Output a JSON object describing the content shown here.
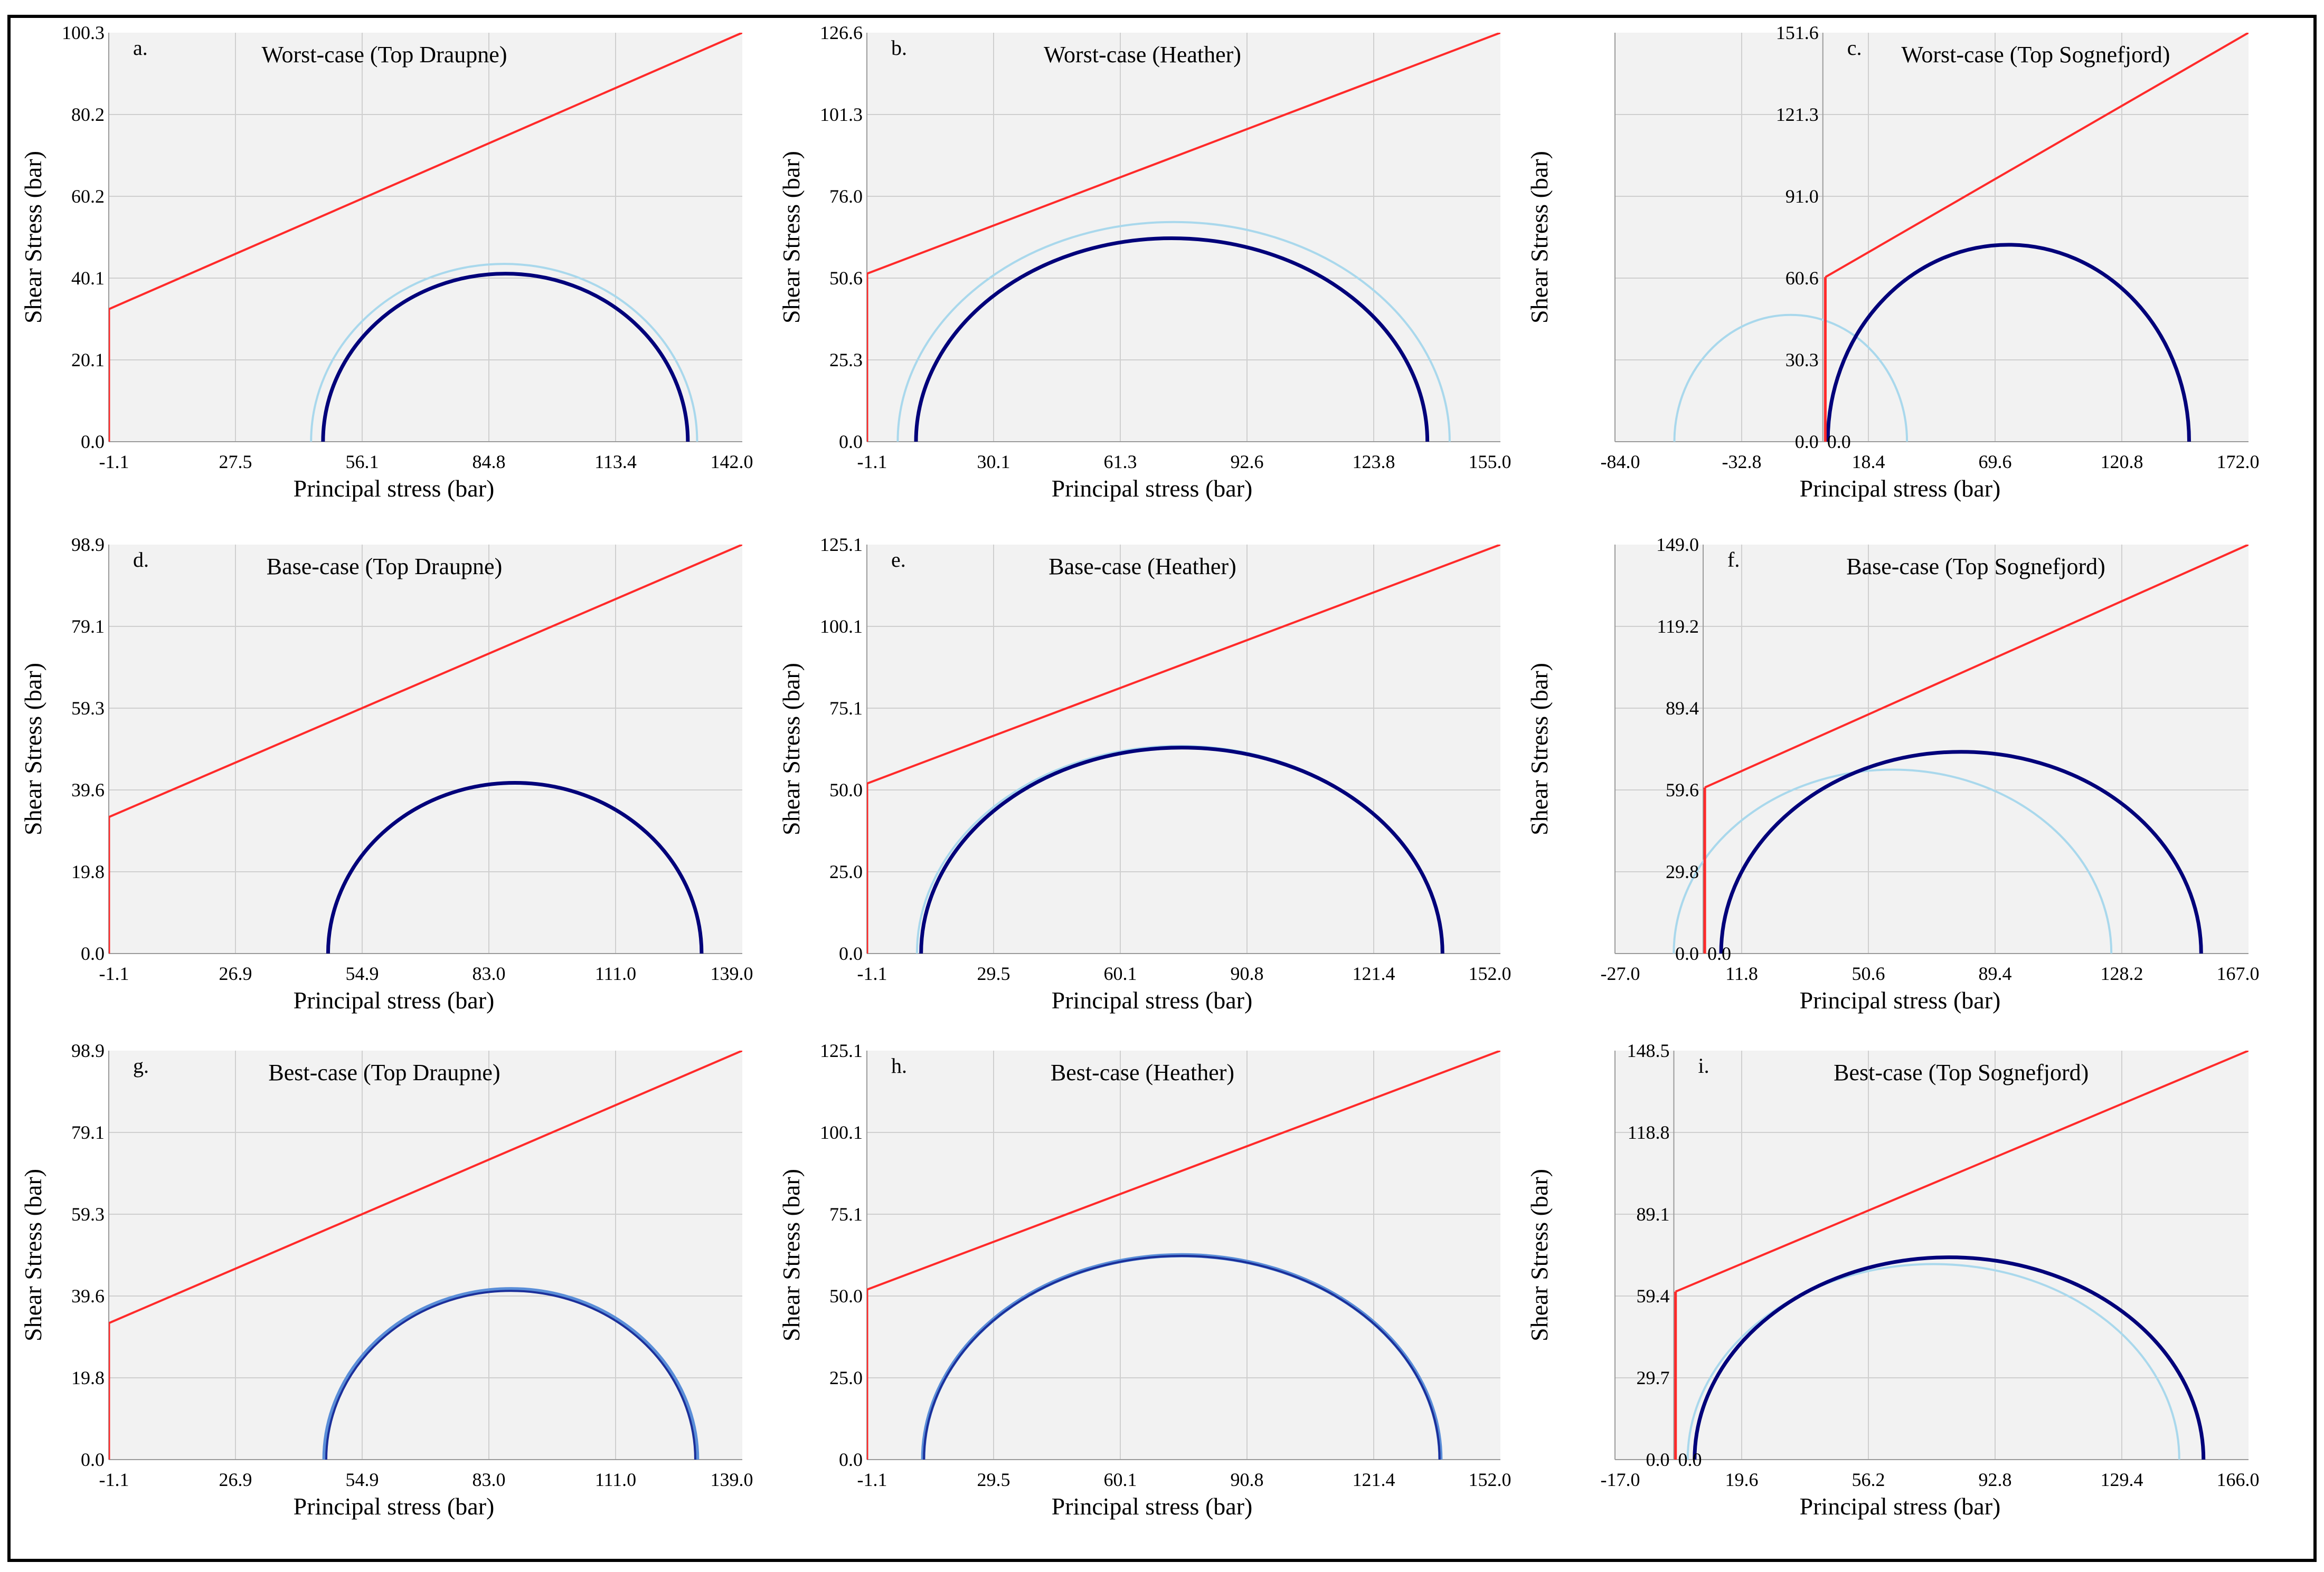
{
  "figure": {
    "x_axis_label": "Principal stress (bar)",
    "y_axis_label": "Shear Stress (bar)"
  },
  "colors": {
    "plot_bg": "#f2f2f2",
    "grid": "#cfcfcf",
    "failure_envelope": "#ff2a2a",
    "circle_dark": "#00007a",
    "circle_light": "#a9d8ec"
  },
  "chart_data": [
    {
      "id": "a",
      "type": "line",
      "panel_label": "a.",
      "title": "Worst-case (Top Draupne)",
      "xlabel": "Principal stress (bar)",
      "ylabel": "Shear Stress (bar)",
      "xlim": [
        -1.1,
        142.0
      ],
      "ylim": [
        0.0,
        100.3
      ],
      "xticks": [
        "-1.1",
        "27.5",
        "56.1",
        "84.8",
        "113.4",
        "142.0"
      ],
      "yticks": [
        "0.0",
        "20.1",
        "40.1",
        "60.2",
        "80.2",
        "100.3"
      ],
      "envelope": {
        "x0": -1.1,
        "y0": 32.5,
        "x1": 142.0,
        "y1": 100.3,
        "cutoff_top": 32.5
      },
      "circles": [
        {
          "name": "light",
          "center": 88.2,
          "radius": 43.6,
          "style": "light"
        },
        {
          "name": "dark",
          "center": 88.5,
          "radius": 41.2,
          "style": "dark"
        }
      ]
    },
    {
      "id": "b",
      "type": "line",
      "panel_label": "b.",
      "title": "Worst-case (Heather)",
      "xlabel": "Principal stress (bar)",
      "ylabel": "Shear Stress (bar)",
      "xlim": [
        -1.1,
        155.0
      ],
      "ylim": [
        0.0,
        126.6
      ],
      "xticks": [
        "-1.1",
        "30.1",
        "61.3",
        "92.6",
        "123.8",
        "155.0"
      ],
      "yticks": [
        "0.0",
        "25.3",
        "50.6",
        "76.0",
        "101.3",
        "126.6"
      ],
      "envelope": {
        "x0": -1.1,
        "y0": 52.0,
        "x1": 155.0,
        "y1": 126.6,
        "cutoff_top": 52.0
      },
      "circles": [
        {
          "name": "light",
          "center": 74.5,
          "radius": 68.0,
          "style": "light"
        },
        {
          "name": "dark",
          "center": 74.0,
          "radius": 63.0,
          "style": "dark"
        }
      ]
    },
    {
      "id": "c",
      "type": "line",
      "panel_label": "c.",
      "title": "Worst-case (Top Sognefjord)",
      "xlabel": "Principal stress (bar)",
      "ylabel": "Shear Stress (bar)",
      "xlim": [
        -84.0,
        172.0
      ],
      "ylim": [
        0.0,
        151.6
      ],
      "xticks": [
        "-84.0",
        "-32.8",
        "18.4",
        "69.6",
        "120.8",
        "172.0"
      ],
      "yticks": [
        "0.0",
        "30.3",
        "60.6",
        "91.0",
        "121.3",
        "151.6"
      ],
      "origin_label": "0.0",
      "envelope": {
        "x0": 1.0,
        "y0": 61.0,
        "x1": 172.0,
        "y1": 151.6,
        "cutoff_top": 61.0
      },
      "circles": [
        {
          "name": "light",
          "center": -13.0,
          "radius": 47.0,
          "style": "light"
        },
        {
          "name": "dark",
          "center": 75.0,
          "radius": 73.0,
          "style": "dark"
        }
      ]
    },
    {
      "id": "d",
      "type": "line",
      "panel_label": "d.",
      "title": "Base-case (Top Draupne)",
      "xlabel": "Principal stress (bar)",
      "ylabel": "Shear Stress (bar)",
      "xlim": [
        -1.1,
        139.0
      ],
      "ylim": [
        0.0,
        98.9
      ],
      "xticks": [
        "-1.1",
        "26.9",
        "54.9",
        "83.0",
        "111.0",
        "139.0"
      ],
      "yticks": [
        "0.0",
        "19.8",
        "39.6",
        "59.3",
        "79.1",
        "98.9"
      ],
      "envelope": {
        "x0": -1.1,
        "y0": 33.0,
        "x1": 139.0,
        "y1": 98.9,
        "cutoff_top": 33.0
      },
      "circles": [
        {
          "name": "light",
          "center": 88.7,
          "radius": 41.3,
          "style": "light"
        },
        {
          "name": "dark",
          "center": 88.7,
          "radius": 41.3,
          "style": "dark"
        }
      ]
    },
    {
      "id": "e",
      "type": "line",
      "panel_label": "e.",
      "title": "Base-case (Heather)",
      "xlabel": "Principal stress (bar)",
      "ylabel": "Shear Stress (bar)",
      "xlim": [
        -1.1,
        152.0
      ],
      "ylim": [
        0.0,
        125.1
      ],
      "xticks": [
        "-1.1",
        "29.5",
        "60.1",
        "90.8",
        "121.4",
        "152.0"
      ],
      "yticks": [
        "0.0",
        "25.0",
        "50.0",
        "75.1",
        "100.1",
        "125.1"
      ],
      "envelope": {
        "x0": -1.1,
        "y0": 52.0,
        "x1": 152.0,
        "y1": 125.1,
        "cutoff_top": 52.0
      },
      "circles": [
        {
          "name": "light",
          "center": 74.5,
          "radius": 63.5,
          "style": "light"
        },
        {
          "name": "dark",
          "center": 75.0,
          "radius": 63.0,
          "style": "dark"
        }
      ]
    },
    {
      "id": "f",
      "type": "line",
      "panel_label": "f.",
      "title": "Base-case (Top Sognefjord)",
      "xlabel": "Principal stress (bar)",
      "ylabel": "Shear Stress (bar)",
      "xlim": [
        -27.0,
        167.0
      ],
      "ylim": [
        0.0,
        149.0
      ],
      "xticks": [
        "-27.0",
        "11.8",
        "50.6",
        "89.4",
        "128.2",
        "167.0"
      ],
      "yticks": [
        "0.0",
        "29.8",
        "59.6",
        "89.4",
        "119.2",
        "149.0"
      ],
      "origin_label": "0.0",
      "envelope": {
        "x0": 0.5,
        "y0": 60.5,
        "x1": 167.0,
        "y1": 149.0,
        "cutoff_top": 60.5
      },
      "circles": [
        {
          "name": "light",
          "center": 58.0,
          "radius": 67.0,
          "style": "light"
        },
        {
          "name": "dark",
          "center": 79.0,
          "radius": 73.5,
          "style": "dark"
        }
      ]
    },
    {
      "id": "g",
      "type": "line",
      "panel_label": "g.",
      "title": "Best-case (Top Draupne)",
      "xlabel": "Principal stress (bar)",
      "ylabel": "Shear Stress (bar)",
      "xlim": [
        -1.1,
        139.0
      ],
      "ylim": [
        0.0,
        98.9
      ],
      "xticks": [
        "-1.1",
        "26.9",
        "54.9",
        "83.0",
        "111.0",
        "139.0"
      ],
      "yticks": [
        "0.0",
        "19.8",
        "39.6",
        "59.3",
        "79.1",
        "98.9"
      ],
      "envelope": {
        "x0": -1.1,
        "y0": 33.0,
        "x1": 139.0,
        "y1": 98.9,
        "cutoff_top": 33.0
      },
      "circles": [
        {
          "name": "light",
          "center": 87.8,
          "radius": 41.2,
          "style": "mid"
        },
        {
          "name": "dark",
          "center": 87.8,
          "radius": 40.8,
          "style": "dark-thin"
        }
      ]
    },
    {
      "id": "h",
      "type": "line",
      "panel_label": "h.",
      "title": "Best-case (Heather)",
      "xlabel": "Principal stress (bar)",
      "ylabel": "Shear Stress (bar)",
      "xlim": [
        -1.1,
        152.0
      ],
      "ylim": [
        0.0,
        125.1
      ],
      "xticks": [
        "-1.1",
        "29.5",
        "60.1",
        "90.8",
        "121.4",
        "152.0"
      ],
      "yticks": [
        "0.0",
        "25.0",
        "50.0",
        "75.1",
        "100.1",
        "125.1"
      ],
      "envelope": {
        "x0": -1.1,
        "y0": 52.0,
        "x1": 152.0,
        "y1": 125.1,
        "cutoff_top": 52.0
      },
      "circles": [
        {
          "name": "light",
          "center": 75.0,
          "radius": 62.5,
          "style": "mid"
        },
        {
          "name": "dark",
          "center": 75.0,
          "radius": 62.3,
          "style": "dark-thin"
        }
      ]
    },
    {
      "id": "i",
      "type": "line",
      "panel_label": "i.",
      "title": "Best-case (Top Sognefjord)",
      "xlabel": "Principal stress (bar)",
      "ylabel": "Shear Stress (bar)",
      "xlim": [
        -17.0,
        166.0
      ],
      "ylim": [
        0.0,
        148.5
      ],
      "xticks": [
        "-17.0",
        "19.6",
        "56.2",
        "92.8",
        "129.4",
        "166.0"
      ],
      "yticks": [
        "0.0",
        "29.7",
        "59.4",
        "89.1",
        "118.8",
        "148.5"
      ],
      "origin_label": "0.0",
      "envelope": {
        "x0": 0.5,
        "y0": 61.0,
        "x1": 166.0,
        "y1": 148.5,
        "cutoff_top": 61.0
      },
      "circles": [
        {
          "name": "light",
          "center": 75.0,
          "radius": 71.0,
          "style": "light"
        },
        {
          "name": "dark",
          "center": 79.5,
          "radius": 73.5,
          "style": "dark"
        }
      ]
    }
  ]
}
